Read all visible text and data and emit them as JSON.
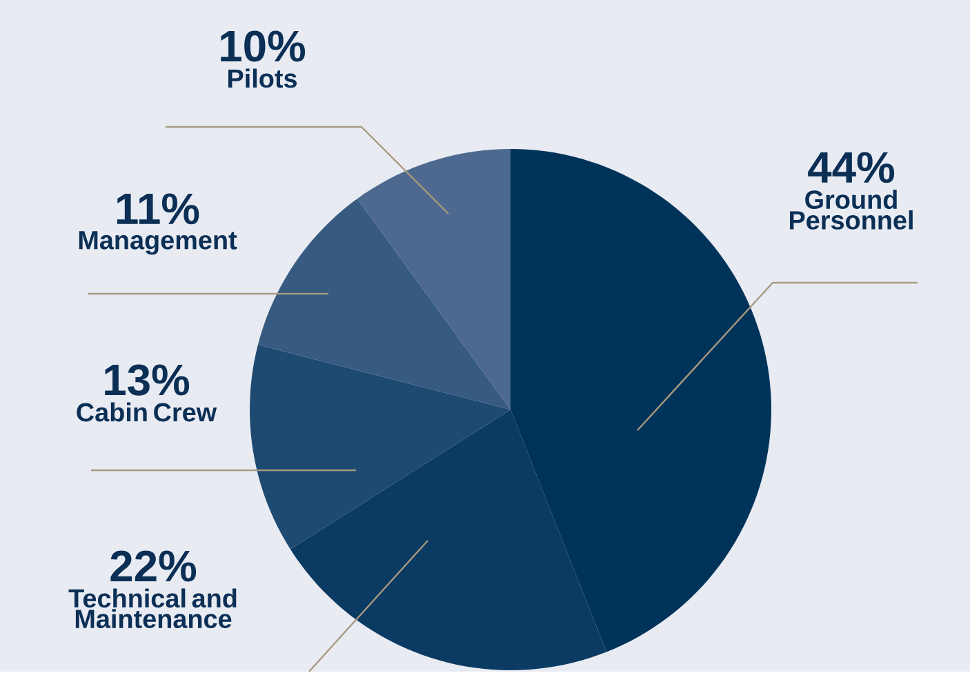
{
  "chart_data": {
    "type": "pie",
    "categories": [
      "Ground Personnel",
      "Technical and Maintenance",
      "Cabin Crew",
      "Management",
      "Pilots"
    ],
    "values": [
      44,
      22,
      13,
      11,
      10
    ],
    "value_labels": [
      "44%",
      "22%",
      "13%",
      "11%",
      "10%"
    ],
    "colors": [
      "#00335a",
      "#0b3a63",
      "#1e4a72",
      "#365a80",
      "#4d6990"
    ]
  }
}
